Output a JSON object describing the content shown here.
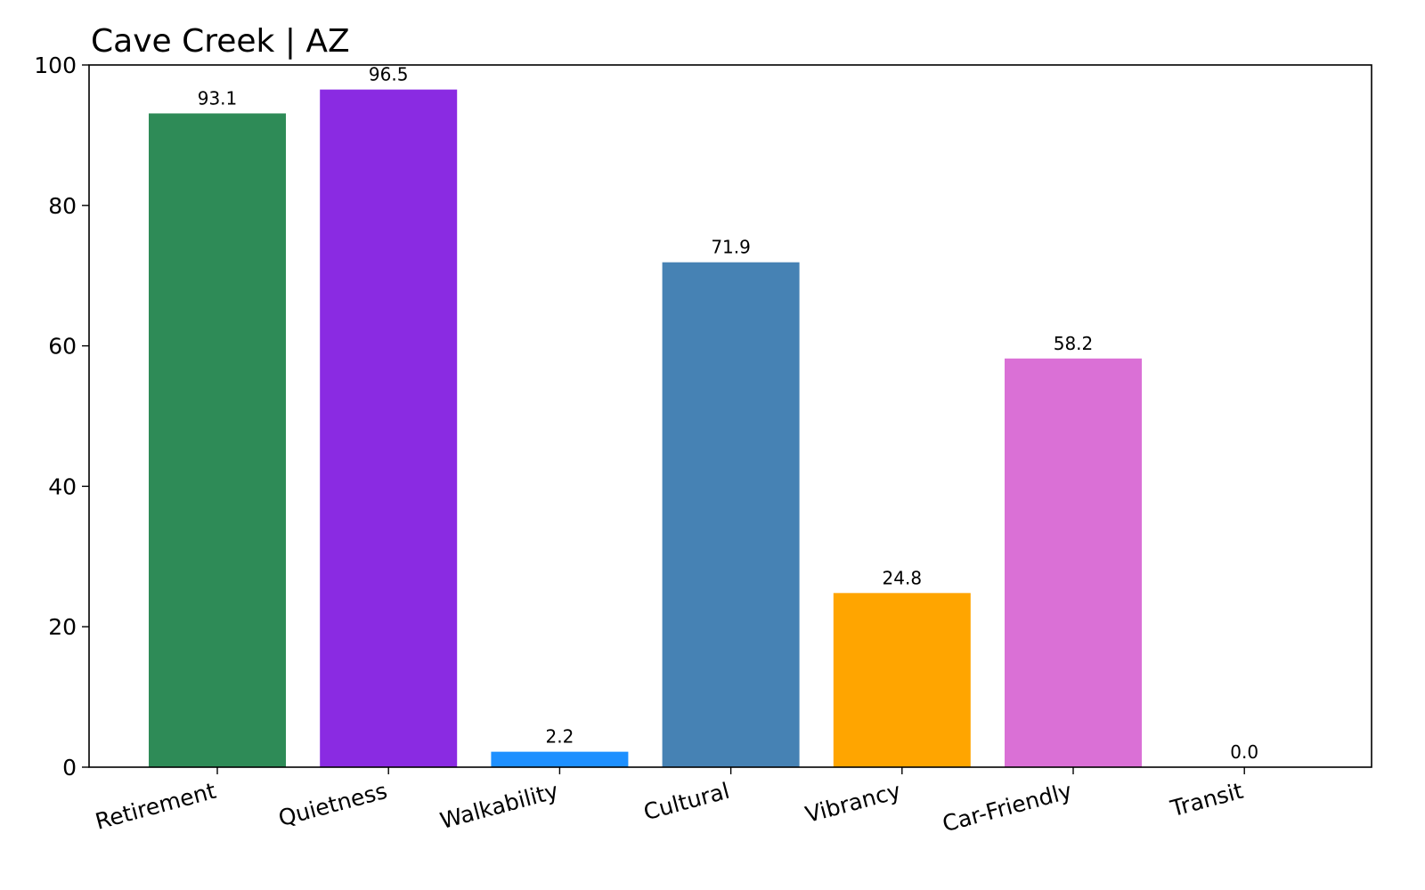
{
  "chart_data": {
    "type": "bar",
    "title": "Cave Creek | AZ",
    "xlabel": "",
    "ylabel": "",
    "categories": [
      "Retirement",
      "Quietness",
      "Walkability",
      "Cultural",
      "Vibrancy",
      "Car-Friendly",
      "Transit"
    ],
    "values": [
      93.1,
      96.5,
      2.2,
      71.9,
      24.8,
      58.2,
      0.0
    ],
    "value_labels": [
      "93.1",
      "96.5",
      "2.2",
      "71.9",
      "24.8",
      "58.2",
      "0.0"
    ],
    "colors": [
      "#2e8b57",
      "#8a2be2",
      "#1e90ff",
      "#4682b4",
      "#ffa500",
      "#da70d6",
      "#1e90ff"
    ],
    "ylim": [
      0,
      100
    ],
    "yticks": [
      0,
      20,
      40,
      60,
      80,
      100
    ],
    "ytick_labels": [
      "0",
      "20",
      "40",
      "60",
      "80",
      "100"
    ],
    "grid": false,
    "legend": "none",
    "xtick_rotation": "slanted"
  }
}
